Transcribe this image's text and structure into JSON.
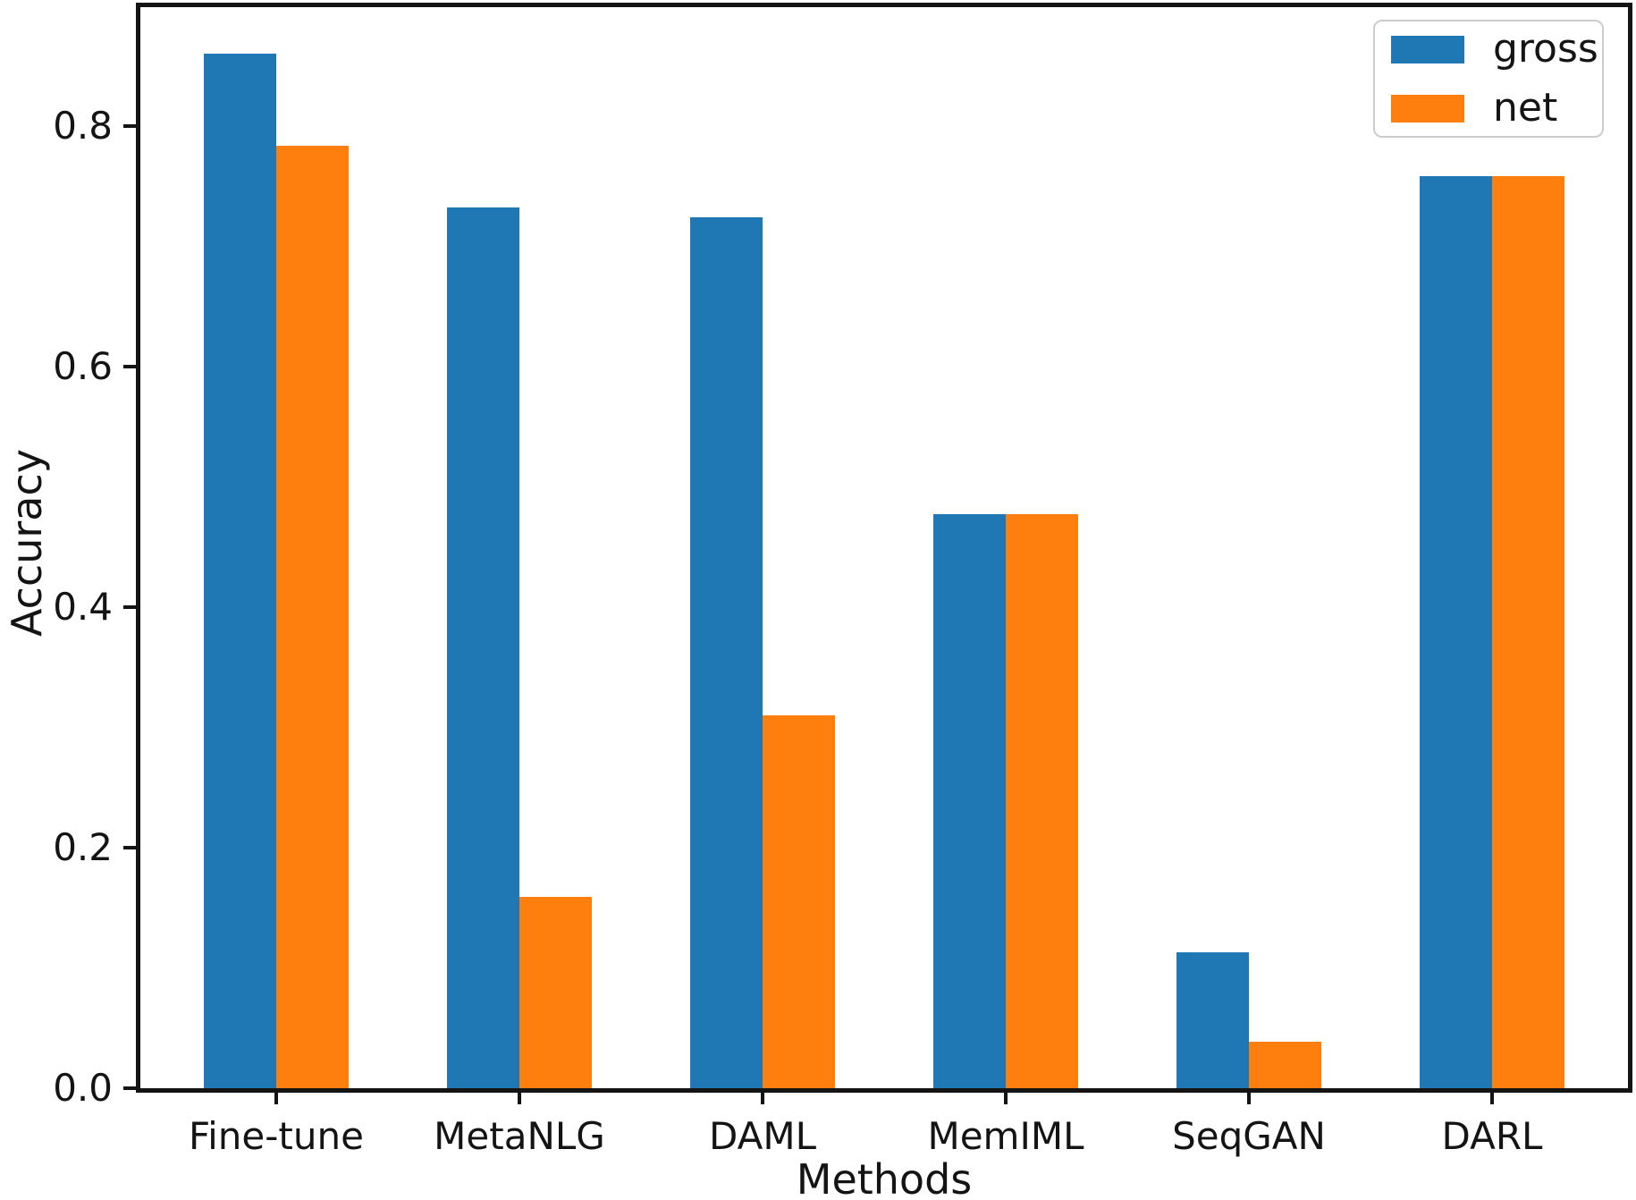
{
  "chart_data": {
    "type": "bar",
    "title": "",
    "xlabel": "Methods",
    "ylabel": "Accuracy",
    "categories": [
      "Fine-tune",
      "MetaNLG",
      "DAML",
      "MemIML",
      "SeqGAN",
      "DARL"
    ],
    "series": [
      {
        "name": "gross",
        "color": "#1f77b4",
        "values": [
          0.86,
          0.732,
          0.724,
          0.477,
          0.113,
          0.758
        ]
      },
      {
        "name": "net",
        "color": "#ff7f0e",
        "values": [
          0.784,
          0.159,
          0.31,
          0.477,
          0.039,
          0.758
        ]
      }
    ],
    "ylim": [
      0,
      0.9
    ],
    "yticks": [
      "0.0",
      "0.2",
      "0.4",
      "0.6",
      "0.8"
    ],
    "grid": false,
    "legend_position": "upper right",
    "bar_width_fraction": 0.3
  }
}
